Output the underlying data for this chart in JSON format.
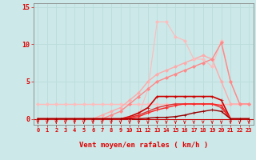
{
  "title": "",
  "xlabel": "Vent moyen/en rafales ( km/h )",
  "ylabel": "",
  "bg_color": "#cce8e8",
  "grid_color": "#aadddd",
  "xlim": [
    -0.5,
    23.5
  ],
  "ylim": [
    -0.8,
    15.5
  ],
  "yticks": [
    0,
    5,
    10,
    15
  ],
  "xticks": [
    0,
    1,
    2,
    3,
    4,
    5,
    6,
    7,
    8,
    9,
    10,
    11,
    12,
    13,
    14,
    15,
    16,
    17,
    18,
    19,
    20,
    21,
    22,
    23
  ],
  "lines": [
    {
      "x": [
        0,
        1,
        2,
        3,
        4,
        5,
        6,
        7,
        8,
        9,
        10,
        11,
        12,
        13,
        14,
        15,
        16,
        17,
        18,
        19,
        20,
        21,
        22,
        23
      ],
      "y": [
        2,
        2,
        2,
        2,
        2,
        2,
        2,
        2,
        2,
        2,
        2,
        2,
        2,
        2,
        2,
        2,
        2,
        2,
        2,
        2,
        2,
        2,
        2,
        2
      ],
      "color": "#ffbbbb",
      "lw": 1.0,
      "marker": "D",
      "ms": 2.0
    },
    {
      "x": [
        0,
        1,
        2,
        3,
        4,
        5,
        6,
        7,
        8,
        9,
        10,
        11,
        12,
        13,
        14,
        15,
        16,
        17,
        18,
        19,
        20,
        21,
        22,
        23
      ],
      "y": [
        0,
        0,
        0,
        0,
        0,
        0,
        0,
        0.5,
        1,
        1.5,
        2.5,
        3.5,
        5,
        6,
        6.5,
        7,
        7.5,
        8,
        8.5,
        8,
        5,
        2,
        2,
        2
      ],
      "color": "#ffaaaa",
      "lw": 1.0,
      "marker": "D",
      "ms": 2.0
    },
    {
      "x": [
        0,
        1,
        2,
        3,
        4,
        5,
        6,
        7,
        8,
        9,
        10,
        11,
        12,
        13,
        14,
        15,
        16,
        17,
        18,
        19,
        20,
        21,
        22,
        23
      ],
      "y": [
        0,
        0,
        0,
        0,
        0,
        0,
        0,
        0,
        0,
        0,
        0,
        0.5,
        4,
        13,
        13,
        11,
        10.5,
        8,
        8,
        7,
        10.5,
        5,
        2,
        2
      ],
      "color": "#ffbbbb",
      "lw": 0.8,
      "marker": "D",
      "ms": 2.0
    },
    {
      "x": [
        0,
        1,
        2,
        3,
        4,
        5,
        6,
        7,
        8,
        9,
        10,
        11,
        12,
        13,
        14,
        15,
        16,
        17,
        18,
        19,
        20,
        21,
        22,
        23
      ],
      "y": [
        0,
        0,
        0,
        0,
        0,
        0,
        0,
        0,
        0.5,
        1,
        2,
        3,
        4,
        5,
        5.5,
        6,
        6.5,
        7,
        7.5,
        8,
        10.2,
        5,
        2,
        2
      ],
      "color": "#ff8888",
      "lw": 1.0,
      "marker": "D",
      "ms": 2.0
    },
    {
      "x": [
        0,
        1,
        2,
        3,
        4,
        5,
        6,
        7,
        8,
        9,
        10,
        11,
        12,
        13,
        14,
        15,
        16,
        17,
        18,
        19,
        20,
        21,
        22,
        23
      ],
      "y": [
        0,
        0,
        0,
        0,
        0,
        0,
        0,
        0,
        0,
        0,
        0.3,
        0.8,
        1.5,
        3,
        3,
        3,
        3,
        3,
        3,
        3,
        2.5,
        0,
        0,
        0
      ],
      "color": "#cc0000",
      "lw": 1.2,
      "marker": "+",
      "ms": 3.5
    },
    {
      "x": [
        0,
        1,
        2,
        3,
        4,
        5,
        6,
        7,
        8,
        9,
        10,
        11,
        12,
        13,
        14,
        15,
        16,
        17,
        18,
        19,
        20,
        21,
        22,
        23
      ],
      "y": [
        0,
        0,
        0,
        0,
        0,
        0,
        0,
        0,
        0,
        0,
        0.2,
        0.5,
        1,
        1.5,
        1.8,
        2,
        2,
        2,
        2,
        2,
        1.5,
        0,
        0,
        0
      ],
      "color": "#dd3333",
      "lw": 1.0,
      "marker": "+",
      "ms": 3.0
    },
    {
      "x": [
        0,
        1,
        2,
        3,
        4,
        5,
        6,
        7,
        8,
        9,
        10,
        11,
        12,
        13,
        14,
        15,
        16,
        17,
        18,
        19,
        20,
        21,
        22,
        23
      ],
      "y": [
        0,
        0,
        0,
        0,
        0,
        0,
        0,
        0,
        0,
        0,
        0.1,
        0.3,
        0.8,
        1.2,
        1.5,
        1.8,
        2,
        2,
        2,
        2,
        1.8,
        0,
        0,
        0
      ],
      "color": "#ff2222",
      "lw": 1.0,
      "marker": "+",
      "ms": 3.0
    },
    {
      "x": [
        0,
        1,
        2,
        3,
        4,
        5,
        6,
        7,
        8,
        9,
        10,
        11,
        12,
        13,
        14,
        15,
        16,
        17,
        18,
        19,
        20,
        21,
        22,
        23
      ],
      "y": [
        0,
        0,
        0,
        0,
        0,
        0,
        0,
        0,
        0,
        0,
        0,
        0,
        0.1,
        0.2,
        0.2,
        0.3,
        0.5,
        0.8,
        1.0,
        1.2,
        1.0,
        0,
        0,
        0
      ],
      "color": "#990000",
      "lw": 1.0,
      "marker": "+",
      "ms": 3.0
    }
  ],
  "arrow_color": "#dd0000",
  "tick_label_color": "#dd0000",
  "xlabel_color": "#dd0000",
  "ytick_color": "#dd0000"
}
